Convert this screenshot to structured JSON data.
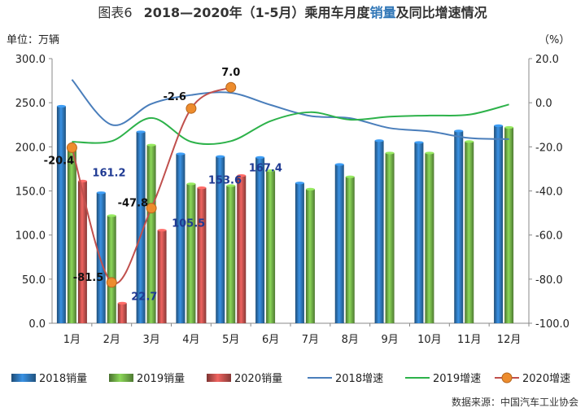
{
  "figure": {
    "number": "图表6",
    "title_parts": [
      {
        "text": "2018—2020年（1-5月）乘用车月度",
        "color": "#333333"
      },
      {
        "text": "销量",
        "color": "#2e75b6"
      },
      {
        "text": "及同比增速情况",
        "color": "#333333"
      }
    ],
    "source": "数据来源：中国汽车工业协会"
  },
  "chart_data": {
    "type": "bar",
    "title": "2018—2020年（1-5月）乘用车月度销量及同比增速情况",
    "ylabel": "单位：万辆",
    "y2label": "（%）",
    "categories": [
      "1月",
      "2月",
      "3月",
      "4月",
      "5月",
      "6月",
      "7月",
      "8月",
      "9月",
      "10月",
      "11月",
      "12月"
    ],
    "ylim": [
      0,
      300
    ],
    "y_ticks": [
      "0.0",
      "50.0",
      "100.0",
      "150.0",
      "200.0",
      "250.0",
      "300.0"
    ],
    "y2lim": [
      -100,
      20
    ],
    "y2_ticks": [
      "-100.0",
      "-80.0",
      "-60.0",
      "-40.0",
      "-20.0",
      "0.0",
      "20.0"
    ],
    "bar_series": [
      {
        "name": "2018销量",
        "color": "#2e75b6",
        "values": [
          246,
          148,
          217,
          192,
          189,
          188,
          159,
          180,
          207,
          205,
          218,
          224
        ]
      },
      {
        "name": "2019销量",
        "color": "#70ad47",
        "values": [
          201,
          122,
          202,
          158,
          156,
          173,
          152,
          166,
          193,
          193,
          206,
          222
        ]
      },
      {
        "name": "2020销量",
        "color": "#c0504d",
        "values": [
          161.2,
          22.7,
          105.5,
          153.6,
          167.4
        ],
        "labels": [
          "161.2",
          "22.7",
          "105.5",
          "153.6",
          "167.4"
        ],
        "label_color": "#1f3a93"
      }
    ],
    "line_series": [
      {
        "name": "2018增速",
        "color": "#4a7ebb",
        "values": [
          10.5,
          -10,
          -0.5,
          3.5,
          4.5,
          -1,
          -6,
          -7,
          -11.5,
          -13,
          -16,
          -16.5
        ]
      },
      {
        "name": "2019增速",
        "color": "#2db24a",
        "values": [
          -17.7,
          -17.4,
          -6.9,
          -17.7,
          -17.4,
          -8.3,
          -4.3,
          -7.7,
          -6.3,
          -5.8,
          -5.4,
          -0.8
        ]
      },
      {
        "name": "2020增速",
        "color": "#c0504d",
        "marker_color": "#ed8c2d",
        "values": [
          -20.4,
          -81.5,
          -47.8,
          -2.6,
          7.0
        ],
        "labels": [
          "-20.4",
          "-81.5",
          "-47.8",
          "-2.6",
          "7.0"
        ]
      }
    ],
    "grid": false,
    "legend_position": "bottom"
  }
}
